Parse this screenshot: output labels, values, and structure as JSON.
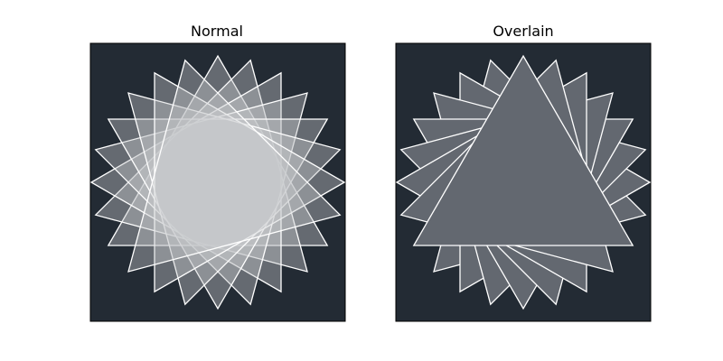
{
  "chart_data": [
    {
      "type": "other",
      "title": "Normal",
      "background_color": "#232b34",
      "triangle_fill": "#c8cacd",
      "triangle_opacity": 0.4,
      "edge_color": "#ffffff",
      "triangle_count": 8,
      "rotation_step_deg": 15,
      "blend": "normal",
      "axes_visible": false
    },
    {
      "type": "other",
      "title": "Overlain",
      "background_color": "#232b34",
      "triangle_fill": "#636870",
      "triangle_opacity": 1,
      "edge_color": "#ffffff",
      "triangle_count": 8,
      "rotation_step_deg": 15,
      "blend": "overlain",
      "axes_visible": false
    }
  ]
}
